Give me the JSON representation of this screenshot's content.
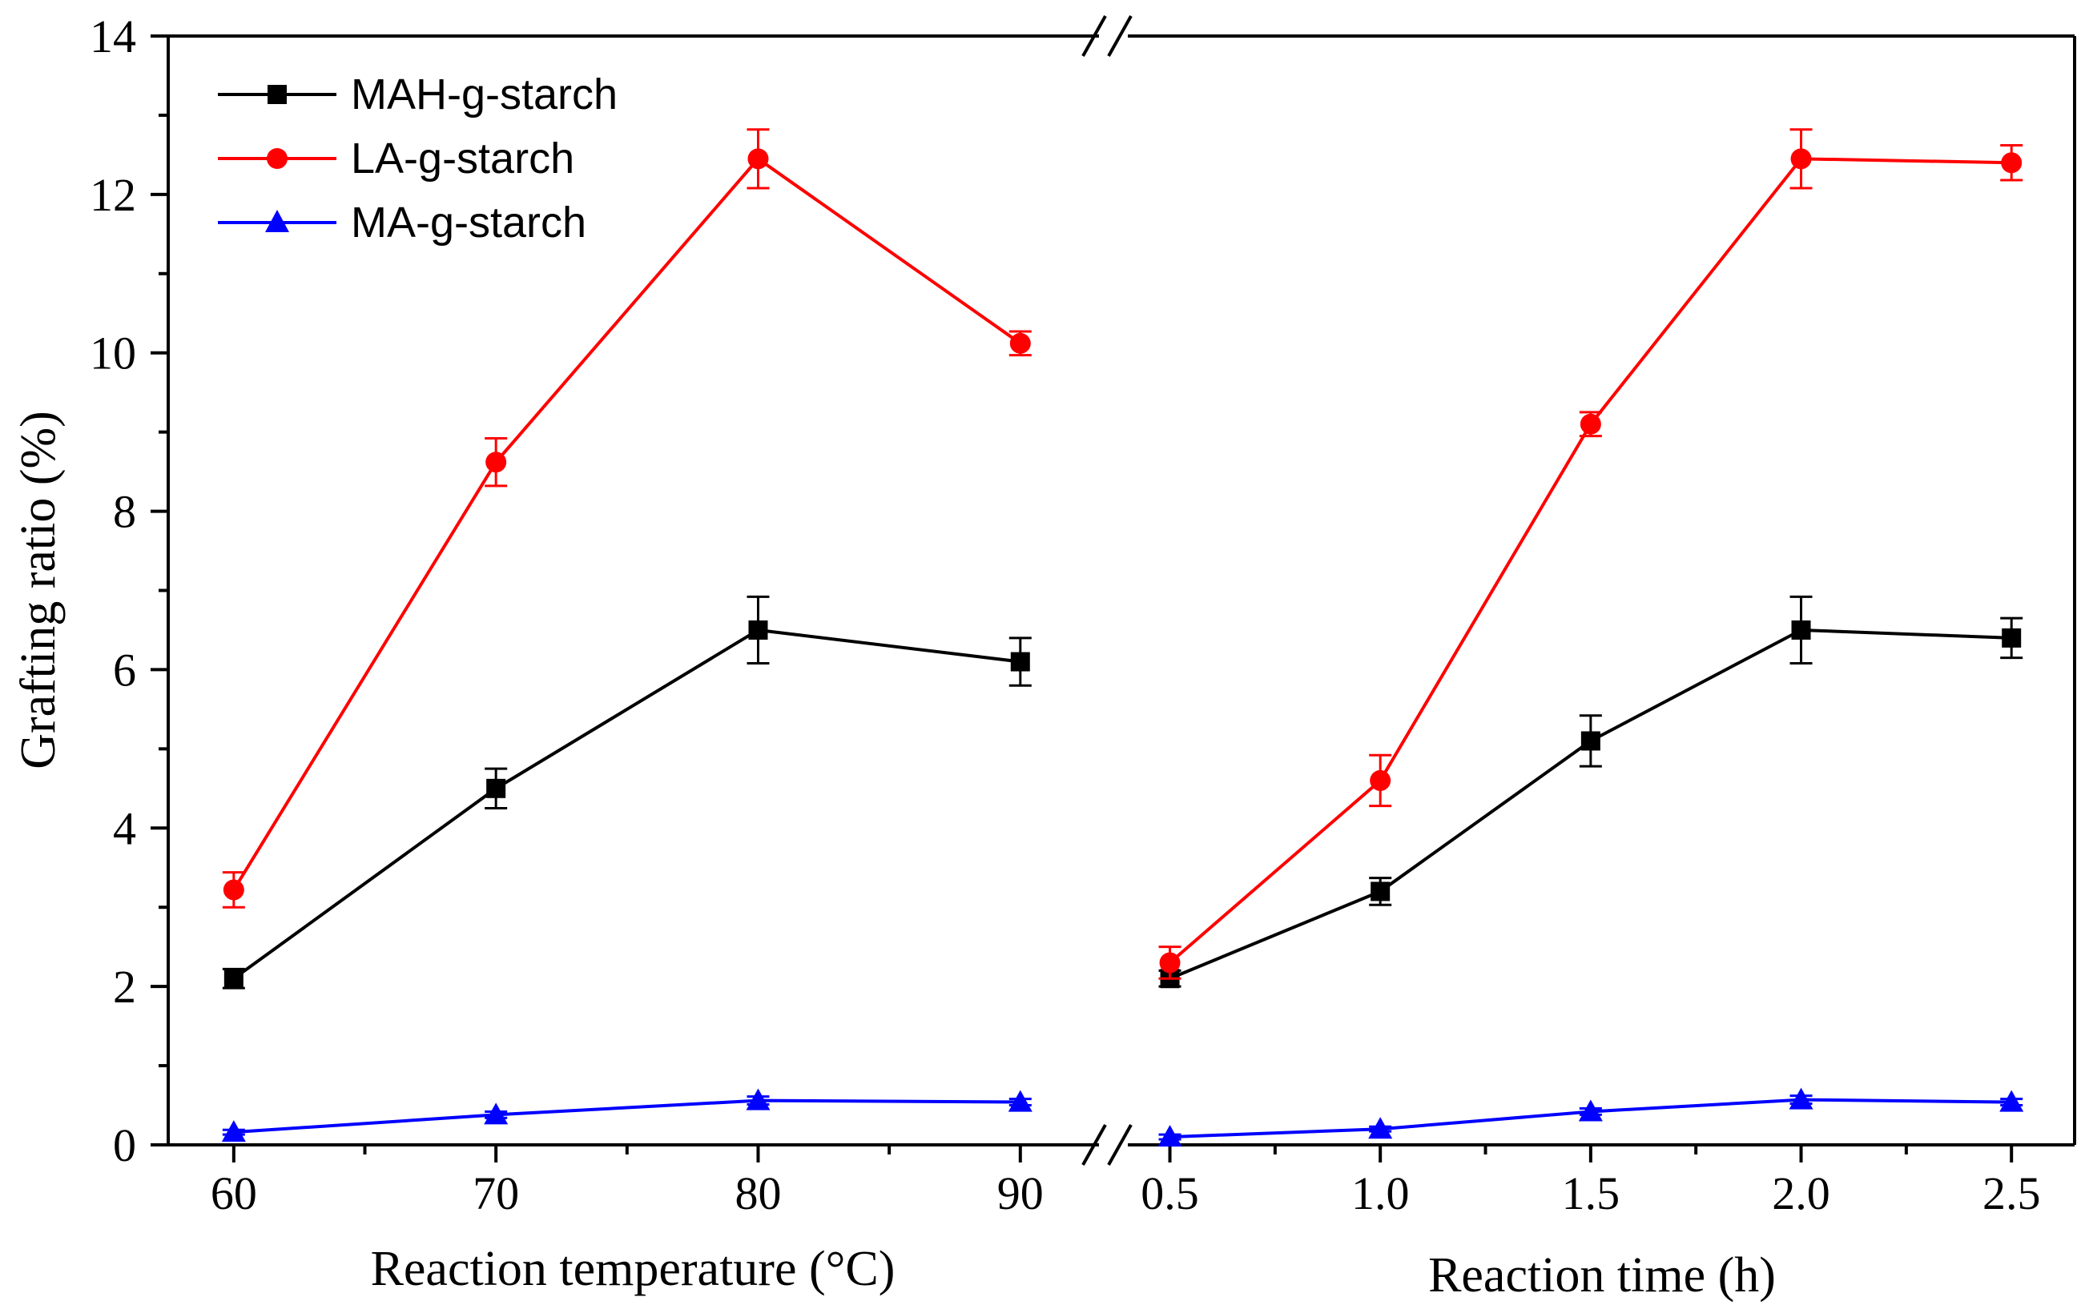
{
  "chart_data": {
    "type": "line",
    "ylabel": "Grafting ratio (%)",
    "ylim": [
      0,
      14
    ],
    "yticks": [
      "0",
      "2",
      "4",
      "6",
      "8",
      "10",
      "12",
      "14"
    ],
    "legend_position": "top-left",
    "broken_x_axis": true,
    "panels": [
      {
        "xlabel": "Reaction temperature (°C)",
        "x": [
          60,
          70,
          80,
          90
        ],
        "xticks": [
          "60",
          "70",
          "80",
          "90"
        ],
        "xlim": [
          57.5,
          93.0
        ],
        "series": [
          {
            "name": "MAH-g-starch",
            "color": "#000000",
            "marker": "square",
            "values": [
              2.1,
              4.5,
              6.5,
              6.1
            ],
            "errors": [
              0.12,
              0.25,
              0.42,
              0.3
            ]
          },
          {
            "name": "LA-g-starch",
            "color": "#ff0000",
            "marker": "circle",
            "values": [
              3.22,
              8.62,
              12.45,
              10.12
            ],
            "errors": [
              0.22,
              0.3,
              0.37,
              0.15
            ]
          },
          {
            "name": "MA-g-starch",
            "color": "#0000ff",
            "marker": "triangle",
            "values": [
              0.16,
              0.38,
              0.56,
              0.54
            ],
            "errors": [
              0.03,
              0.04,
              0.05,
              0.04
            ]
          }
        ]
      },
      {
        "xlabel": "Reaction time (h)",
        "x": [
          0.5,
          1.0,
          1.5,
          2.0,
          2.5
        ],
        "xticks": [
          "0.5",
          "1.0",
          "1.5",
          "2.0",
          "2.5"
        ],
        "xlim": [
          0.4,
          2.65
        ],
        "series": [
          {
            "name": "MAH-g-starch",
            "color": "#000000",
            "marker": "square",
            "values": [
              2.1,
              3.2,
              5.1,
              6.5,
              6.4
            ],
            "errors": [
              0.1,
              0.17,
              0.32,
              0.42,
              0.25
            ]
          },
          {
            "name": "LA-g-starch",
            "color": "#ff0000",
            "marker": "circle",
            "values": [
              2.3,
              4.6,
              9.1,
              12.45,
              12.4
            ],
            "errors": [
              0.2,
              0.32,
              0.15,
              0.37,
              0.22
            ]
          },
          {
            "name": "MA-g-starch",
            "color": "#0000ff",
            "marker": "triangle",
            "values": [
              0.1,
              0.2,
              0.42,
              0.57,
              0.54
            ],
            "errors": [
              0.03,
              0.03,
              0.04,
              0.05,
              0.04
            ]
          }
        ]
      }
    ],
    "legend": [
      {
        "name": "MAH-g-starch",
        "color": "#000000",
        "marker": "square"
      },
      {
        "name": "LA-g-starch",
        "color": "#ff0000",
        "marker": "circle"
      },
      {
        "name": "MA-g-starch",
        "color": "#0000ff",
        "marker": "triangle"
      }
    ]
  }
}
